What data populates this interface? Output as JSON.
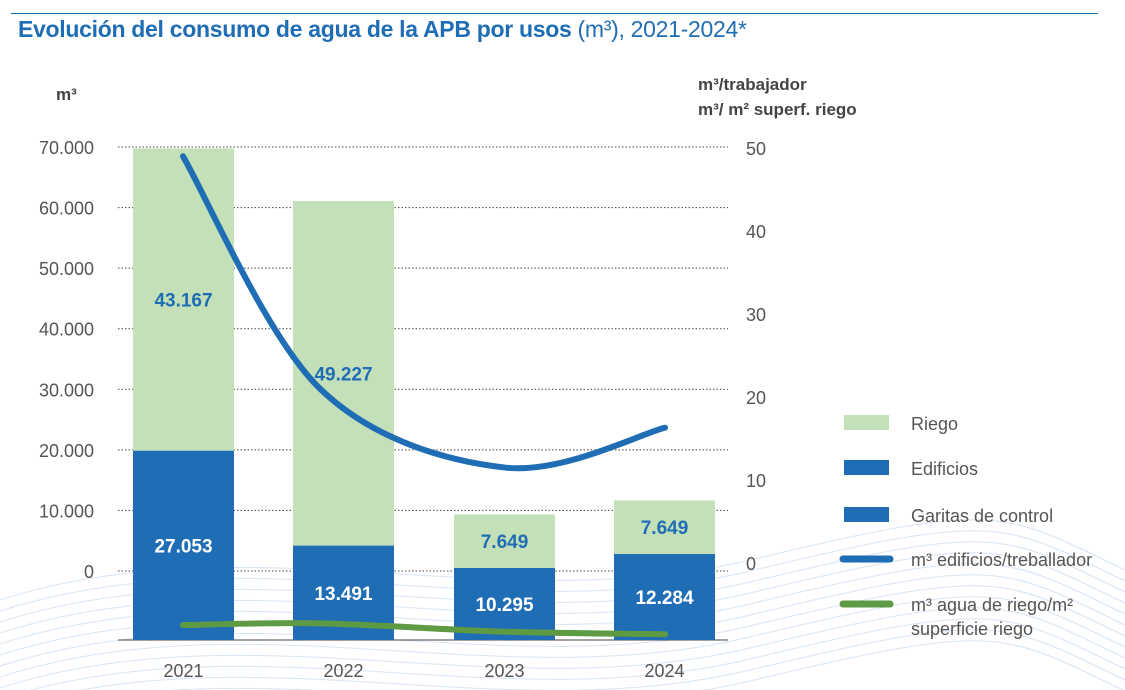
{
  "title": {
    "bold": "Evolución del consumo de agua de la APB por usos",
    "regular": " (m³), 2021-2024*"
  },
  "chart_data": {
    "type": "bar",
    "stacked": true,
    "title": "Evolución del consumo de agua de la APB por usos (m³), 2021-2024*",
    "categories": [
      "2021",
      "2022",
      "2023",
      "2024"
    ],
    "ylabel": "m³",
    "y2label": [
      "m³/trabajador",
      "m³/ m² superf. riego"
    ],
    "ylim": [
      0,
      70000
    ],
    "y2lim": [
      0,
      50
    ],
    "yticks": [
      "0",
      "10.000",
      "20.000",
      "30.000",
      "40.000",
      "50.000",
      "60.000",
      "70.000"
    ],
    "y2ticks": [
      "0",
      "10",
      "20",
      "30",
      "40",
      "50"
    ],
    "grid": "dashed horizontal",
    "legend_position": "right",
    "series": [
      {
        "name": "Edificios",
        "kind": "bar",
        "color": "#1f6db5",
        "values": [
          27053,
          13491,
          10295,
          12284
        ],
        "labels": [
          "27.053",
          "13.491",
          "10.295",
          "12.284"
        ]
      },
      {
        "name": "Garitas de control",
        "kind": "bar",
        "color": "#1f6db5",
        "values": [
          0,
          0,
          0,
          0
        ]
      },
      {
        "name": "Riego",
        "kind": "bar",
        "color": "#c3e0b8",
        "values": [
          43167,
          49227,
          7649,
          7649
        ],
        "labels": [
          "43.167",
          "49.227",
          "7.649",
          "7.649"
        ]
      },
      {
        "name": "m³ edificios/treballador",
        "kind": "line",
        "axis": "right",
        "color": "#1f6db5",
        "values": [
          49,
          21,
          11.5,
          16.3
        ]
      },
      {
        "name": "m³ agua de riego/m² superficie riego",
        "kind": "line",
        "axis": "right",
        "color": "#5e9a44",
        "values": [
          1.8,
          2.0,
          1.0,
          0.7
        ]
      }
    ]
  },
  "legend": [
    {
      "label": "Riego",
      "type": "box",
      "color": "#c3e0b8"
    },
    {
      "label": "Edificios",
      "type": "box",
      "color": "#1f6db5"
    },
    {
      "label": "Garitas de control",
      "type": "box",
      "color": "#1f6db5"
    },
    {
      "label": "m³ edificios/treballador",
      "type": "line",
      "color": "#1f6db5"
    },
    {
      "label": [
        "m³ agua de riego/m²",
        "superficie riego"
      ],
      "type": "line",
      "color": "#5e9a44"
    }
  ]
}
